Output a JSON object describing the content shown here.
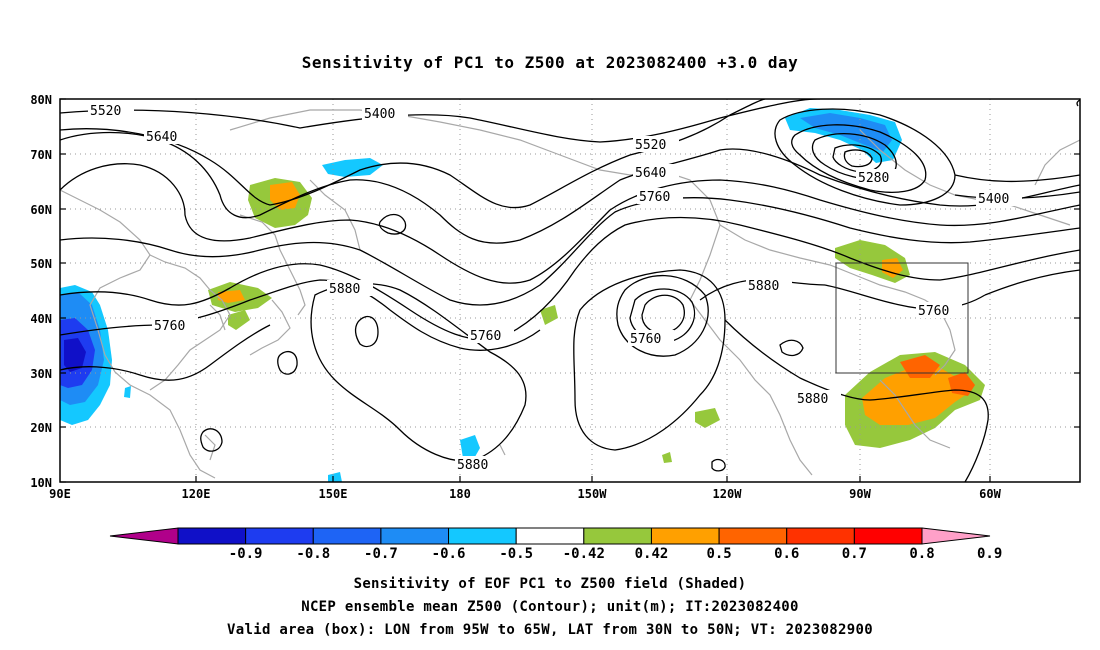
{
  "title": "Sensitivity of PC1 to Z500 at 2023082400 +3.0 day",
  "lat_ticks": [
    "80N",
    "70N",
    "60N",
    "50N",
    "40N",
    "30N",
    "20N",
    "10N"
  ],
  "lon_ticks": [
    "90E",
    "120E",
    "150E",
    "180",
    "150W",
    "120W",
    "90W",
    "60W"
  ],
  "contour_labels": [
    {
      "id": "c5520a",
      "text": "5520"
    },
    {
      "id": "c5400a",
      "text": "5400"
    },
    {
      "id": "c5640a",
      "text": "5640"
    },
    {
      "id": "c5520b",
      "text": "5520"
    },
    {
      "id": "c5640b",
      "text": "5640"
    },
    {
      "id": "c5760a",
      "text": "5760"
    },
    {
      "id": "c5280",
      "text": "5280"
    },
    {
      "id": "c5400b",
      "text": "5400"
    },
    {
      "id": "c5880a",
      "text": "5880"
    },
    {
      "id": "c5760b",
      "text": "5760"
    },
    {
      "id": "c5760c",
      "text": "5760"
    },
    {
      "id": "c5760d",
      "text": "5760"
    },
    {
      "id": "c5880b",
      "text": "5880"
    },
    {
      "id": "c5760e",
      "text": "5760"
    },
    {
      "id": "c5880c",
      "text": "5880"
    },
    {
      "id": "c5880d",
      "text": "5880"
    }
  ],
  "colorbar": {
    "labels": [
      "-0.9",
      "-0.8",
      "-0.7",
      "-0.6",
      "-0.5",
      "-0.42",
      "0.42",
      "0.5",
      "0.6",
      "0.7",
      "0.8",
      "0.9"
    ],
    "colors": [
      "#b0008a",
      "#1010c8",
      "#1e3cf0",
      "#1e64f5",
      "#1e8cf5",
      "#14c8ff",
      "#ffffff",
      "#96c83c",
      "#ffa000",
      "#ff6400",
      "#ff3200",
      "#ff0000",
      "#ffa0c8"
    ]
  },
  "caption": {
    "line1": "Sensitivity of EOF PC1 to Z500 field (Shaded)",
    "line2": "NCEP ensemble mean Z500 (Contour); unit(m); IT:2023082400",
    "line3": "Valid area (box): LON from 95W to 65W, LAT from 30N to 50N; VT: 2023082900"
  }
}
